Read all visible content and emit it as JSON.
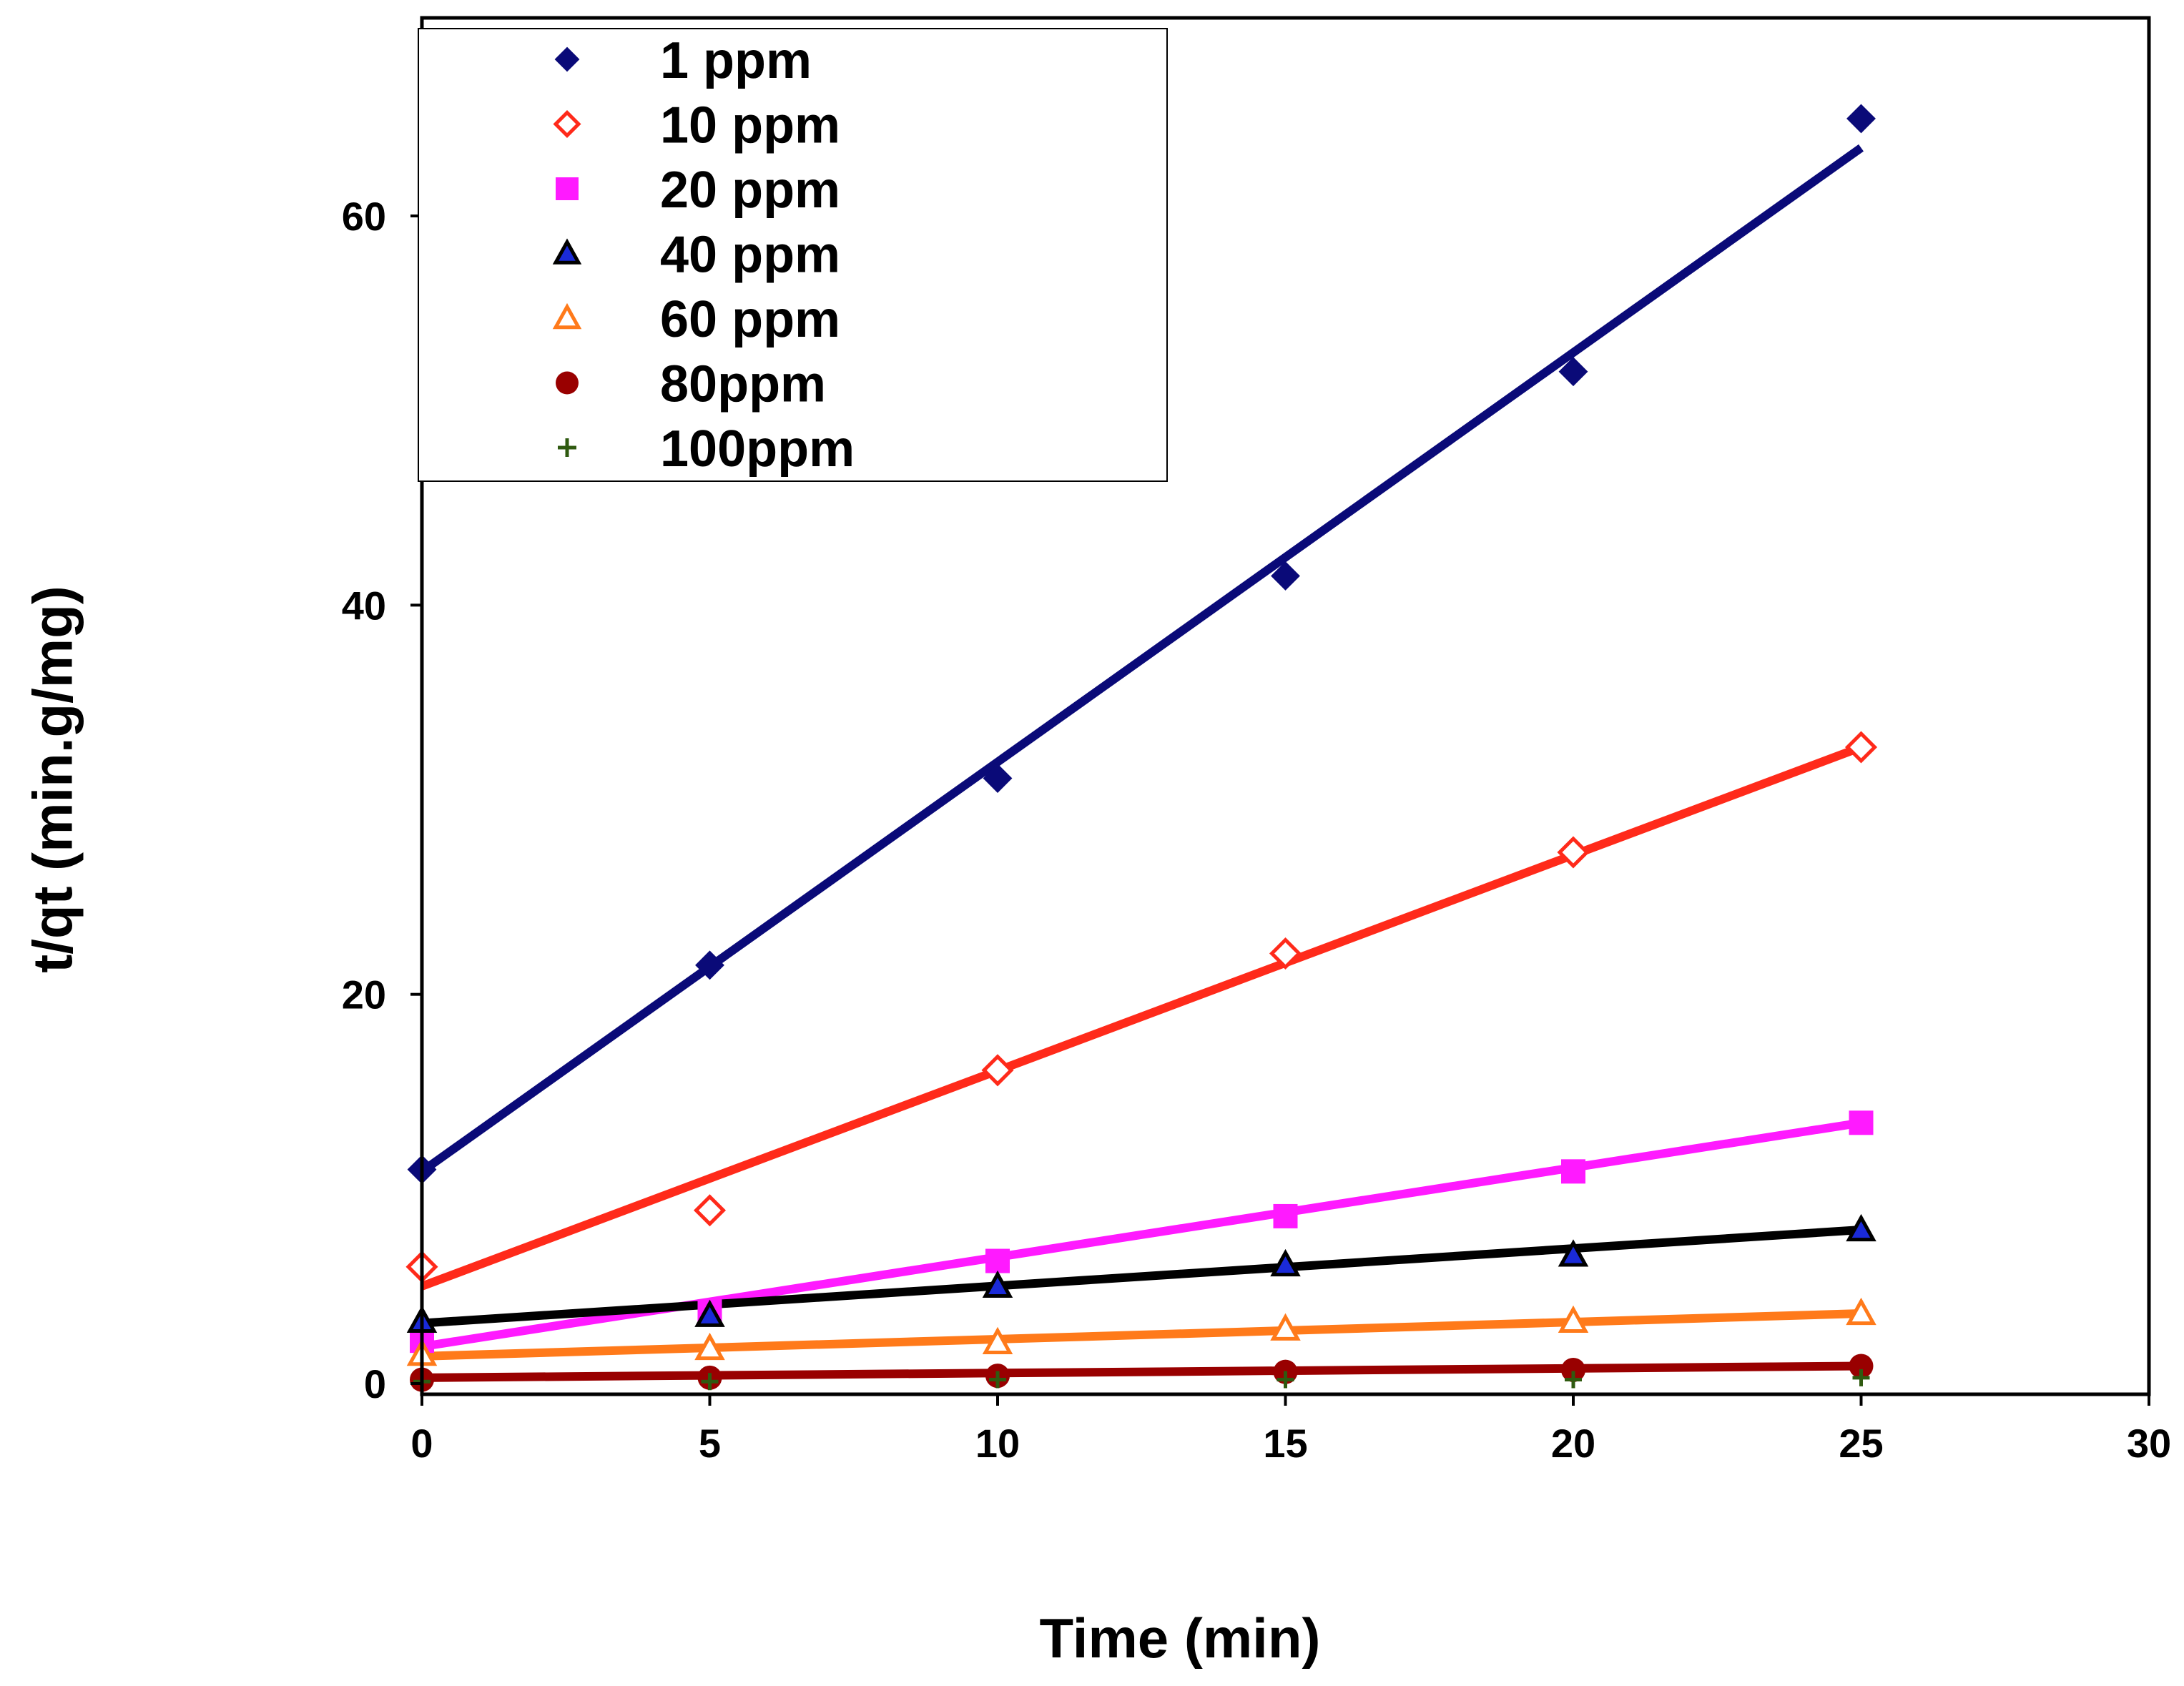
{
  "chart_data": {
    "type": "scatter",
    "title": "",
    "xlabel": "Time (min)",
    "ylabel": "t/qt (min.g/mg)",
    "xlim": [
      0,
      30
    ],
    "ylim": [
      0,
      70
    ],
    "xticks": [
      "0",
      "5",
      "10",
      "15",
      "20",
      "25",
      "30"
    ],
    "yticks": [
      "0",
      "20",
      "40",
      "60"
    ],
    "xtick_values": [
      0,
      5,
      10,
      15,
      20,
      25,
      30
    ],
    "ytick_values": [
      0,
      20,
      40,
      60
    ],
    "grid": false,
    "legend_position": "top-left",
    "series": [
      {
        "name": "1 ppm",
        "marker": "diamond-filled",
        "color": "#0a0a78",
        "line_color": "#0a0a78",
        "x": [
          0,
          5,
          10,
          15,
          20,
          25
        ],
        "y": [
          11.0,
          21.5,
          31.1,
          41.5,
          52.0,
          65.0
        ],
        "fit": [
          10.9,
          63.5
        ]
      },
      {
        "name": "10 ppm",
        "marker": "diamond-open",
        "color": "#ff2a1a",
        "line_color": "#ff2a1a",
        "x": [
          0,
          5,
          10,
          15,
          20,
          25
        ],
        "y": [
          6.0,
          8.9,
          16.1,
          22.1,
          27.3,
          32.7
        ],
        "fit": [
          5.0,
          32.7
        ]
      },
      {
        "name": "20 ppm",
        "marker": "square-filled",
        "color": "#ff1aff",
        "line_color": "#ff1aff",
        "x": [
          0,
          5,
          10,
          15,
          20,
          25
        ],
        "y": [
          2.2,
          3.7,
          6.3,
          8.6,
          10.9,
          13.4
        ],
        "fit": [
          1.9,
          13.4
        ]
      },
      {
        "name": "40 ppm",
        "marker": "triangle-filled",
        "color": "#1a2ad8",
        "line_color": "#000000",
        "x": [
          0,
          5,
          10,
          15,
          20,
          25
        ],
        "y": [
          3.2,
          3.5,
          5.0,
          6.1,
          6.6,
          7.9
        ],
        "fit": [
          3.1,
          7.9
        ]
      },
      {
        "name": "60 ppm",
        "marker": "triangle-open",
        "color": "#ff7a1a",
        "line_color": "#ff7a1a",
        "x": [
          0,
          5,
          10,
          15,
          20,
          25
        ],
        "y": [
          1.5,
          1.8,
          2.1,
          2.8,
          3.2,
          3.6
        ],
        "fit": [
          1.4,
          3.6
        ]
      },
      {
        "name": "80ppm",
        "marker": "circle-filled",
        "color": "#990000",
        "line_color": "#990000",
        "x": [
          0,
          5,
          10,
          15,
          20,
          25
        ],
        "y": [
          0.2,
          0.3,
          0.4,
          0.6,
          0.7,
          0.9
        ],
        "fit": [
          0.3,
          0.9
        ]
      },
      {
        "name": "100ppm",
        "marker": "plus",
        "color": "#2f5a10",
        "line_color": "#2f5a10",
        "x": [
          0,
          5,
          10,
          15,
          20,
          25
        ],
        "y": [
          0.1,
          0.1,
          0.2,
          0.2,
          0.2,
          0.3
        ],
        "fit": null
      }
    ]
  }
}
